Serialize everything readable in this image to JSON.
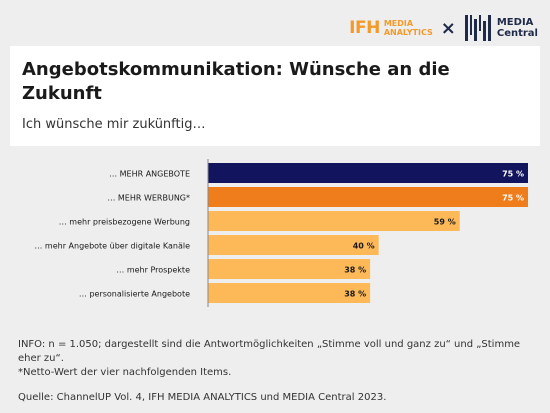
{
  "logos": {
    "ifh_big": "IFH",
    "ifh_line1": "MEDIA",
    "ifh_line2": "ANALYTICS",
    "times": "×",
    "mc_line1": "MEDIA",
    "mc_line2": "Central"
  },
  "title": "Angebotskommunikation: Wünsche an die Zukunft",
  "subtitle": "Ich wünsche mir zukünftig…",
  "chart_data": {
    "type": "bar",
    "orientation": "horizontal",
    "categories": [
      "… MEHR ANGEBOTE",
      "… MEHR WERBUNG*",
      "… mehr preisbezogene Werbung",
      "… mehr Angebote über digitale Kanäle",
      "… mehr Prospekte",
      "… personalisierte Angebote"
    ],
    "values": [
      75,
      75,
      59,
      40,
      38,
      38
    ],
    "value_labels": [
      "75 %",
      "75 %",
      "59 %",
      "40 %",
      "38 %",
      "38 %"
    ],
    "colors": [
      "#12145e",
      "#f07d1c",
      "#fdb858",
      "#fdb858",
      "#fdb858",
      "#fdb858"
    ],
    "label_colors": [
      "#ffffff",
      "#ffffff",
      "#1a1a1a",
      "#1a1a1a",
      "#1a1a1a",
      "#1a1a1a"
    ],
    "xlim": [
      0,
      75
    ],
    "grid": false
  },
  "footnotes": {
    "info": "INFO: n = 1.050; dargestellt sind die Antwortmöglichkeiten „Stimme voll und ganz zu“ und „Stimme eher zu“.",
    "note": "*Netto-Wert der vier nachfolgenden Items.",
    "source": "Quelle: ChannelUP Vol. 4, IFH MEDIA ANALYTICS und MEDIA Central 2023."
  }
}
